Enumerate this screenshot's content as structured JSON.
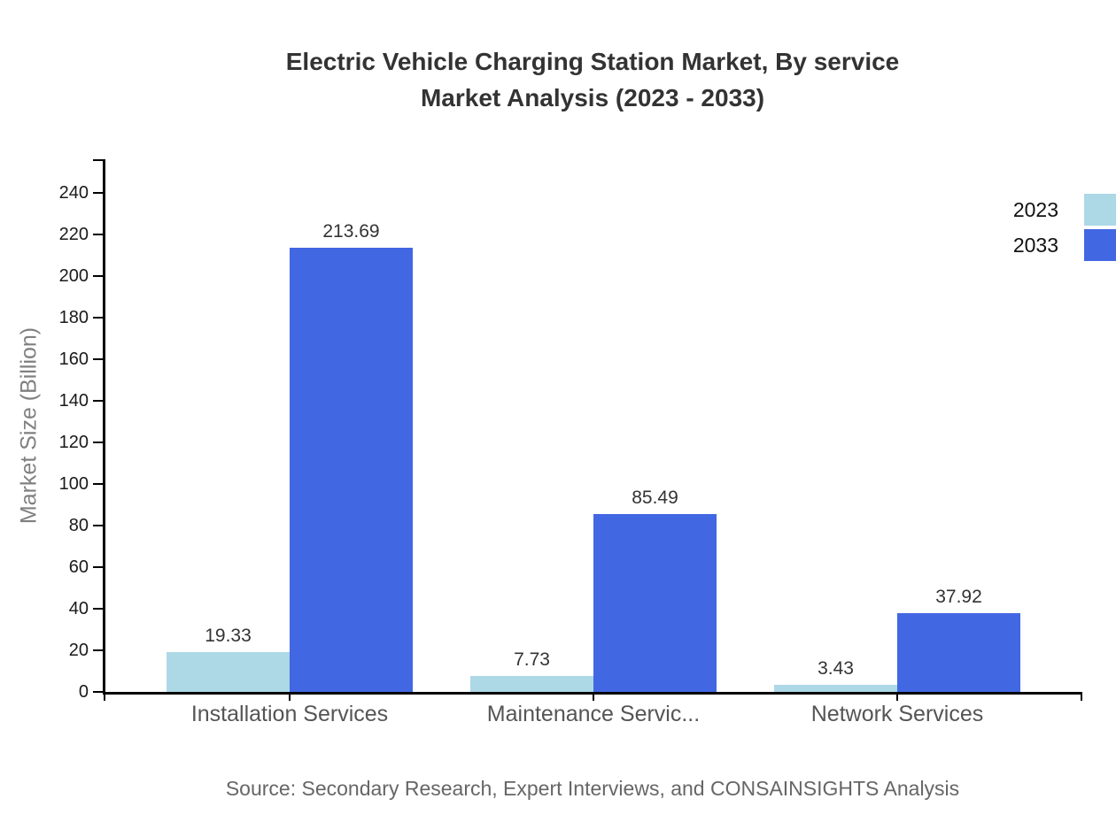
{
  "title": {
    "line1": "Electric Vehicle Charging Station Market, By service",
    "line2": "Market Analysis (2023 - 2033)"
  },
  "source": "Source: Secondary Research, Expert Interviews, and CONSAINSIGHTS Analysis",
  "chart_data": {
    "type": "bar",
    "categories": [
      "Installation Services",
      "Maintenance Servic...",
      "Network Services"
    ],
    "series": [
      {
        "name": "2023",
        "color": "#ADD8E6",
        "values": [
          19.33,
          7.73,
          3.43
        ]
      },
      {
        "name": "2033",
        "color": "#4267E2",
        "values": [
          213.69,
          85.49,
          37.92
        ]
      }
    ],
    "title": "Electric Vehicle Charging Station Market, By service Market Analysis (2023 - 2033)",
    "xlabel": "",
    "ylabel": "Market Size (Billion)",
    "ylim": [
      0,
      256
    ],
    "yticks": [
      0,
      20,
      40,
      60,
      80,
      100,
      120,
      140,
      160,
      180,
      200,
      220,
      240
    ],
    "grid": false,
    "legend_position": "top-right",
    "value_labels_decimals": 2
  },
  "colors": {
    "background": "#FFFFFF",
    "axis": "#000000",
    "title_text": "#333333",
    "tick_text": "#1A1A1A",
    "category_text": "#555555",
    "value_text": "#333333",
    "axis_title_text": "#808080",
    "source_text": "#666666",
    "series_2023": "#ADD8E6",
    "series_2033": "#4267E2"
  }
}
